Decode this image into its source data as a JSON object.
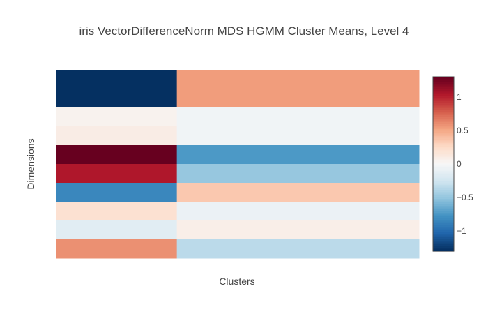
{
  "chart_data": {
    "type": "heatmap",
    "title": "iris VectorDifferenceNorm MDS HGMM Cluster Means, Level 4",
    "xlabel": "Clusters",
    "ylabel": "Dimensions",
    "clusters": 2,
    "dimensions": 10,
    "cluster_widths": [
      1,
      2
    ],
    "values": [
      [
        -1.3,
        0.55
      ],
      [
        -1.3,
        0.55
      ],
      [
        0.05,
        -0.05
      ],
      [
        0.1,
        -0.05
      ],
      [
        1.3,
        -0.75
      ],
      [
        1.05,
        -0.5
      ],
      [
        -0.85,
        0.35
      ],
      [
        0.2,
        -0.08
      ],
      [
        -0.15,
        0.08
      ],
      [
        0.6,
        -0.35
      ]
    ],
    "zlim": [
      -1.3,
      1.3
    ],
    "colorscale": "RdBu",
    "colorbar": {
      "ticks": [
        1,
        0.5,
        0,
        -0.5,
        -1
      ],
      "tick_labels": [
        "1",
        "0.5",
        "0",
        "−0.5",
        "−1"
      ]
    },
    "grid": false
  }
}
